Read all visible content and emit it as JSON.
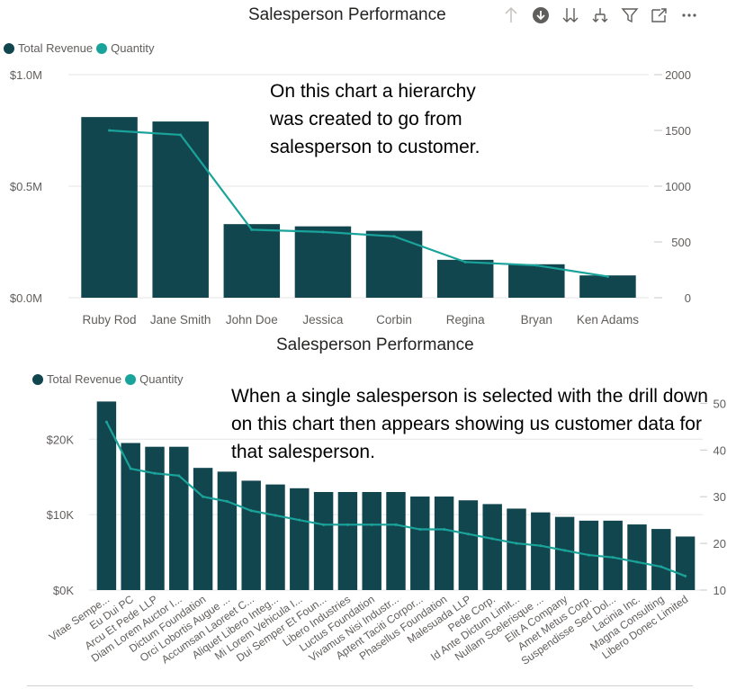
{
  "top": {
    "title": "Salesperson Performance",
    "legend": [
      {
        "label": "Total Revenue",
        "color": "#12464F"
      },
      {
        "label": "Quantity",
        "color": "#1AA39A"
      }
    ],
    "note": "On this chart a hierarchy was created to go from salesperson to customer.",
    "toolbar_icons": [
      "drill-up-icon",
      "drill-down-on-icon",
      "expand-all-icon",
      "expand-next-level-icon",
      "filter-icon",
      "focus-mode-icon",
      "more-options-icon"
    ]
  },
  "bottom": {
    "title": "Salesperson Performance",
    "legend": [
      {
        "label": "Total Revenue",
        "color": "#12464F"
      },
      {
        "label": "Quantity",
        "color": "#1AA39A"
      }
    ],
    "note": "When a single salesperson is selected with the drill down on this chart then appears showing us customer data for that salesperson."
  },
  "chart_data": [
    {
      "type": "bar",
      "title": "Salesperson Performance",
      "categories": [
        "Ruby Rod",
        "Jane Smith",
        "John Doe",
        "Jessica",
        "Corbin",
        "Regina",
        "Bryan",
        "Ken Adams"
      ],
      "series": [
        {
          "name": "Total Revenue",
          "axis": "left",
          "type": "bar",
          "color": "#12464F",
          "values": [
            0.81,
            0.79,
            0.33,
            0.32,
            0.3,
            0.17,
            0.15,
            0.1
          ]
        },
        {
          "name": "Quantity",
          "axis": "right",
          "type": "line",
          "color": "#1AA39A",
          "values": [
            1500,
            1460,
            610,
            590,
            550,
            320,
            290,
            190
          ]
        }
      ],
      "y_left": {
        "ticks": [
          "$0.0M",
          "$0.5M",
          "$1.0M"
        ],
        "tick_values": [
          0,
          0.5,
          1.0
        ],
        "ylim": [
          0,
          1.0
        ]
      },
      "y_right": {
        "ticks": [
          "0",
          "500",
          "1000",
          "1500",
          "2000"
        ],
        "tick_values": [
          0,
          500,
          1000,
          1500,
          2000
        ],
        "ylim": [
          0,
          2000
        ]
      },
      "legend_position": "top-left",
      "grid": true
    },
    {
      "type": "bar",
      "title": "Salesperson Performance",
      "categories": [
        "Vitae Sempe...",
        "Eu Dui PC",
        "Arcu Et Pede LLP",
        "Diam Lorem Auctor I...",
        "Dictum Foundation",
        "Orci Lobortis Augue ...",
        "Accumsan Laoreet C...",
        "Aliquet Libero Integ...",
        "Mi Lorem Vehicula I...",
        "Dui Semper Et Foun...",
        "Libero Industries",
        "Luctus Foundation",
        "Vivamus Nisi Industr...",
        "Aptent Taciti Corpor...",
        "Phasellus Foundation",
        "Malesuada LLP",
        "Pede Corp.",
        "Id Ante Dictum Limit...",
        "Nullam Scelerisque ...",
        "Elit A Company",
        "Amet Metus Corp.",
        "Suspendisse Sed Dol...",
        "Lacinia Inc.",
        "Magna Consulting",
        "Libero Donec Limited"
      ],
      "series": [
        {
          "name": "Total Revenue",
          "axis": "left",
          "type": "bar",
          "color": "#12464F",
          "values": [
            25000,
            19500,
            19000,
            19000,
            16200,
            15700,
            14500,
            14000,
            13500,
            13000,
            13000,
            13000,
            13000,
            12400,
            12400,
            11900,
            11400,
            10800,
            10300,
            9700,
            9200,
            9200,
            8700,
            8100,
            7100
          ]
        },
        {
          "name": "Quantity",
          "axis": "right",
          "type": "line",
          "color": "#1AA39A",
          "values": [
            46,
            36,
            35,
            34.5,
            30,
            29,
            27,
            26,
            25,
            24,
            24,
            24,
            24,
            23,
            23,
            22,
            21,
            20,
            19.5,
            18.5,
            17.5,
            17,
            16,
            15,
            13
          ]
        }
      ],
      "y_left": {
        "ticks": [
          "$0K",
          "$10K",
          "$20K"
        ],
        "tick_values": [
          0,
          10000,
          20000
        ],
        "ylim": [
          0,
          26000
        ]
      },
      "y_right": {
        "ticks": [
          "10",
          "20",
          "30",
          "40",
          "50"
        ],
        "tick_values": [
          10,
          20,
          30,
          40,
          50
        ],
        "ylim": [
          10,
          52
        ]
      },
      "legend_position": "top-left",
      "grid": true
    }
  ]
}
